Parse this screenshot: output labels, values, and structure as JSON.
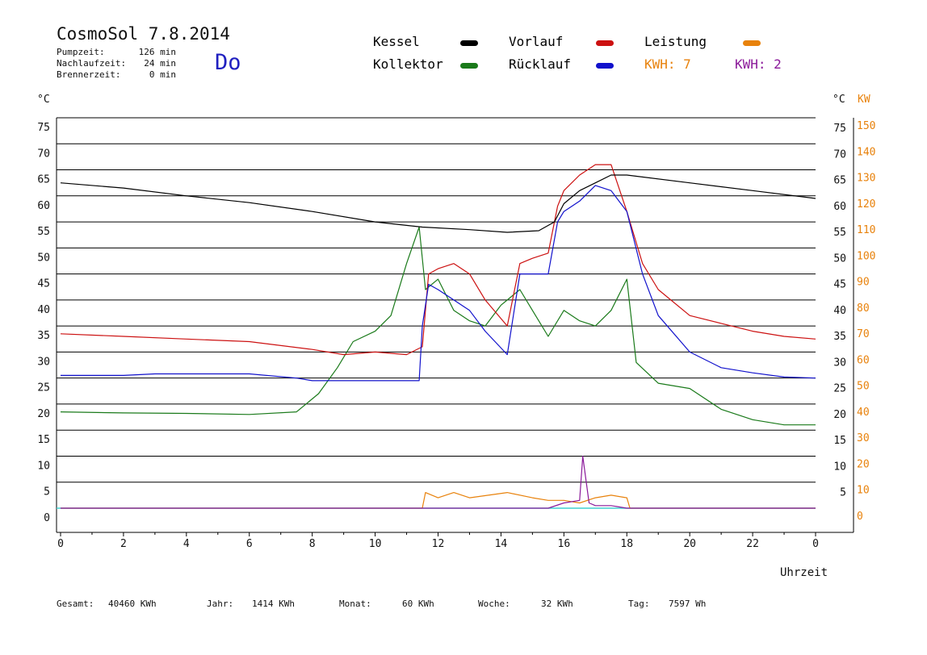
{
  "header": {
    "title": "CosmoSol 7.8.2014",
    "day": "Do",
    "stats": [
      {
        "label": "Pumpzeit:",
        "value": "126 min"
      },
      {
        "label": "Nachlaufzeit:",
        "value": "24 min"
      },
      {
        "label": "Brennerzeit:",
        "value": "0 min"
      }
    ]
  },
  "legend": {
    "kessel": "Kessel",
    "kollektor": "Kollektor",
    "vorlauf": "Vorlauf",
    "ruecklauf": "Rücklauf",
    "leistung": "Leistung",
    "kwh_a": "KWH: 7",
    "kwh_b": "KWH: 2"
  },
  "footer": [
    {
      "label": "Gesamt:",
      "value": "40460 KWh"
    },
    {
      "label": "Jahr:",
      "value": "1414 KWh"
    },
    {
      "label": "Monat:",
      "value": "60 KWh"
    },
    {
      "label": "Woche:",
      "value": "32 KWh"
    },
    {
      "label": "Tag:",
      "value": "7597 Wh"
    }
  ],
  "colors": {
    "kessel": "#000000",
    "kollektor": "#1a7a1a",
    "vorlauf": "#cc1111",
    "ruecklauf": "#1111cc",
    "leistung": "#e8820c",
    "kwh_b": "#8b1a9a",
    "baseline": "#40d0d0",
    "title_day": "#2020c0"
  },
  "chart_data": {
    "type": "line",
    "xlabel": "Uhrzeit",
    "ylabel_left": "°C",
    "ylabel_right_1": "°C",
    "ylabel_right_2": "KW",
    "xlim": [
      0,
      24
    ],
    "ylim": [
      -5,
      75
    ],
    "x_ticks": [
      "0",
      "2",
      "4",
      "6",
      "8",
      "10",
      "12",
      "14",
      "16",
      "18",
      "20",
      "22",
      "0"
    ],
    "y_ticks_left": [
      "75",
      "70",
      "65",
      "60",
      "55",
      "50",
      "45",
      "40",
      "35",
      "30",
      "25",
      "20",
      "15",
      "10",
      "5",
      "0"
    ],
    "y_ticks_right": [
      "75",
      "70",
      "65",
      "60",
      "55",
      "50",
      "45",
      "40",
      "35",
      "30",
      "25",
      "20",
      "15",
      "10",
      "5"
    ],
    "kw_ticks": [
      "150",
      "140",
      "130",
      "120",
      "110",
      "100",
      "90",
      "80",
      "70",
      "60",
      "50",
      "40",
      "30",
      "20",
      "10",
      "0"
    ],
    "series": [
      {
        "name": "Kessel",
        "color": "#000000",
        "x": [
          0,
          2,
          4,
          6,
          8,
          10,
          11.5,
          13,
          14.2,
          15.2,
          15.7,
          16.0,
          16.5,
          17.0,
          17.5,
          18.0,
          20,
          22,
          24
        ],
        "y": [
          62.5,
          61.5,
          60,
          58.7,
          57,
          55,
          54,
          53.5,
          53,
          53.3,
          55,
          58.5,
          61,
          62.5,
          64,
          64,
          62.5,
          61,
          59.5
        ]
      },
      {
        "name": "Kollektor",
        "color": "#1a7a1a",
        "x": [
          0,
          2,
          4,
          6,
          7.5,
          8.2,
          8.8,
          9.3,
          10,
          10.5,
          11,
          11.4,
          11.6,
          12,
          12.5,
          13,
          13.5,
          14,
          14.2,
          14.6,
          15,
          15.5,
          16,
          16.5,
          17,
          17.5,
          18,
          18.3,
          19,
          20,
          21,
          22,
          23,
          24
        ],
        "y": [
          18.5,
          18.3,
          18.2,
          18,
          18.5,
          22,
          27,
          32,
          34,
          37,
          47,
          54,
          42,
          44,
          38,
          36,
          35,
          39,
          40,
          42,
          38,
          33,
          38,
          36,
          35,
          38,
          44,
          28,
          24,
          23,
          19,
          17,
          16,
          16
        ]
      },
      {
        "name": "Vorlauf",
        "color": "#cc1111",
        "x": [
          0,
          2,
          4,
          6,
          8,
          9,
          10,
          11,
          11.5,
          11.7,
          12,
          12.5,
          13,
          13.5,
          14.2,
          14.6,
          15,
          15.5,
          15.8,
          16.0,
          16.5,
          17,
          17.5,
          18.0,
          18.5,
          19,
          20,
          21,
          22,
          23,
          24
        ],
        "y": [
          33.5,
          33,
          32.5,
          32,
          30.5,
          29.5,
          30,
          29.5,
          31,
          45,
          46,
          47,
          45,
          40,
          35,
          47,
          48,
          49,
          58,
          61,
          64,
          66,
          66,
          57,
          47,
          42,
          37,
          35.5,
          34,
          33,
          32.5
        ]
      },
      {
        "name": "Rücklauf",
        "color": "#1111cc",
        "x": [
          0,
          2,
          3,
          6,
          7.5,
          8,
          11.4,
          11.5,
          11.7,
          12,
          12.5,
          13,
          13.5,
          14.2,
          14.6,
          15,
          15.5,
          15.8,
          16.0,
          16.5,
          17,
          17.5,
          18.0,
          18.5,
          19,
          20,
          21,
          22,
          23,
          24
        ],
        "y": [
          25.5,
          25.5,
          25.8,
          25.8,
          25,
          24.5,
          24.5,
          35,
          43,
          42,
          40,
          38,
          34,
          29.5,
          45,
          45,
          45,
          55,
          57,
          59,
          62,
          61,
          57,
          45,
          37,
          30,
          27,
          26,
          25.2,
          25
        ]
      },
      {
        "name": "Leistung",
        "color": "#e8820c",
        "x": [
          0,
          11.5,
          11.6,
          12,
          12.5,
          13,
          14.2,
          15,
          15.5,
          16,
          16.5,
          17,
          17.5,
          18,
          18.1,
          24
        ],
        "y": [
          0,
          0,
          3,
          2,
          3,
          2,
          3,
          2,
          1.5,
          1.5,
          1,
          2,
          2.5,
          2,
          0,
          0
        ]
      },
      {
        "name": "KWH: 2",
        "color": "#8b1a9a",
        "x": [
          0,
          15.5,
          16,
          16.5,
          16.6,
          16.8,
          17,
          17.5,
          18,
          18.1,
          24
        ],
        "y": [
          0,
          0,
          1,
          1.5,
          10,
          1,
          0.5,
          0.5,
          0,
          0,
          0
        ]
      }
    ]
  }
}
